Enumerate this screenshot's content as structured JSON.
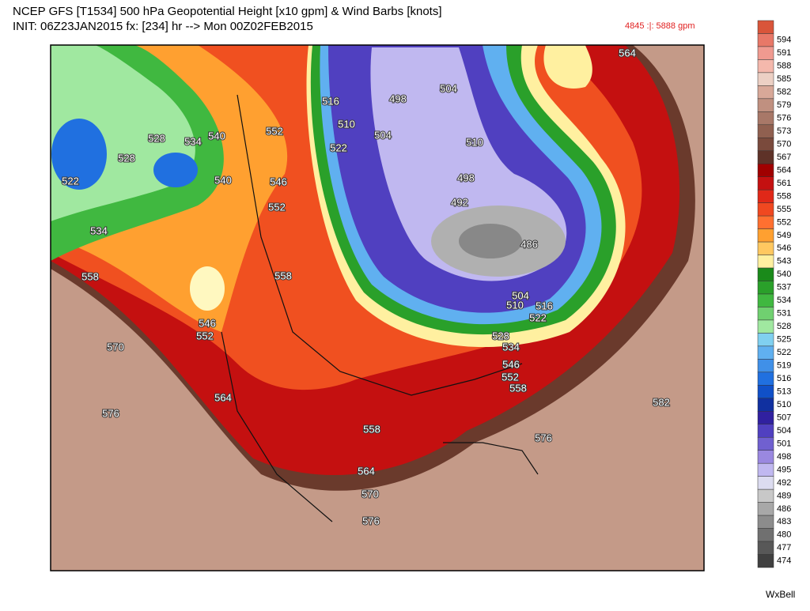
{
  "header": {
    "title_line1": "NCEP GFS [T1534] 500 hPa Geopotential Height [x10 gpm] & Wind Barbs [knots]",
    "title_line2": "INIT: 06Z23JAN2015 fx: [234] hr --> Mon 00Z02FEB2015",
    "range": "4845 :|: 5888 gpm"
  },
  "colorbar": {
    "levels": [
      594,
      591,
      588,
      585,
      582,
      579,
      576,
      573,
      570,
      567,
      564,
      561,
      558,
      555,
      552,
      549,
      546,
      543,
      540,
      537,
      534,
      531,
      528,
      525,
      522,
      519,
      516,
      513,
      510,
      507,
      504,
      501,
      498,
      495,
      492,
      489,
      486,
      483,
      480,
      477,
      474
    ],
    "colors": [
      "#d9553a",
      "#e87868",
      "#f09a90",
      "#f4b8ac",
      "#ecd0c4",
      "#d8a898",
      "#c09080",
      "#a87868",
      "#906050",
      "#7a4a3c",
      "#5e3228",
      "#a00000",
      "#c41010",
      "#e02818",
      "#f04820",
      "#ff7030",
      "#ffa030",
      "#ffc860",
      "#fff0a0",
      "#1a8a1a",
      "#2aa02a",
      "#40b840",
      "#70d070",
      "#a0e8a0",
      "#80d0f0",
      "#60b0f0",
      "#4090e8",
      "#2070e0",
      "#1050c8",
      "#1030a0",
      "#3020a0",
      "#5040c0",
      "#7060d0",
      "#9a88e0",
      "#c0b8f0",
      "#dcdcf0",
      "#c8c8c8",
      "#a8a8a8",
      "#8c8c8c",
      "#707070",
      "#585858",
      "#404040"
    ]
  },
  "contour_labels": [
    "564",
    "504",
    "498",
    "516",
    "510",
    "504",
    "522",
    "552",
    "528",
    "534",
    "540",
    "528",
    "522",
    "534",
    "540",
    "546",
    "552",
    "510",
    "498",
    "492",
    "486",
    "558",
    "558",
    "504",
    "510",
    "516",
    "522",
    "546",
    "552",
    "528",
    "534",
    "546",
    "552",
    "558",
    "570",
    "564",
    "576",
    "582",
    "558",
    "576",
    "564",
    "570",
    "576"
  ],
  "credit": "WxBell"
}
